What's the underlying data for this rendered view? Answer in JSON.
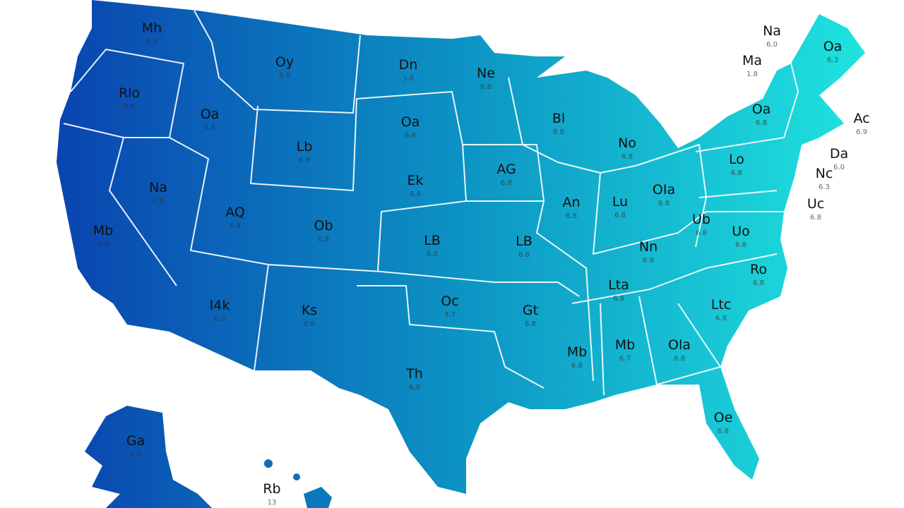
{
  "states": [
    {
      "label": "Mh",
      "value": "6.8"
    },
    {
      "label": "Oy",
      "value": "8.6"
    },
    {
      "label": "Dn",
      "value": "3.8"
    },
    {
      "label": "Ne",
      "value": "8.8"
    },
    {
      "label": "Rlo",
      "value": "6.8"
    },
    {
      "label": "Oa",
      "value": "6.8"
    },
    {
      "label": "Oa",
      "value": "6.8"
    },
    {
      "label": "Bl",
      "value": "8.8"
    },
    {
      "label": "Lb",
      "value": "6.8"
    },
    {
      "label": "No",
      "value": "6.8"
    },
    {
      "label": "Ek",
      "value": "6.8"
    },
    {
      "label": "AG",
      "value": "6.8"
    },
    {
      "label": "Na",
      "value": "6.8"
    },
    {
      "label": "Oa",
      "value": "6.8"
    },
    {
      "label": "Lo",
      "value": "6.8"
    },
    {
      "label": "An",
      "value": "6.8"
    },
    {
      "label": "Lu",
      "value": "6.8"
    },
    {
      "label": "OIa",
      "value": "6.8"
    },
    {
      "label": "AQ",
      "value": "6.8"
    },
    {
      "label": "Mb",
      "value": "6.8"
    },
    {
      "label": "Ob",
      "value": "6.8"
    },
    {
      "label": "LB",
      "value": "6.8"
    },
    {
      "label": "LB",
      "value": "6.8"
    },
    {
      "label": "Nn",
      "value": "6.8"
    },
    {
      "label": "Uo",
      "value": "6.8"
    },
    {
      "label": "Ub",
      "value": "6.8"
    },
    {
      "label": "Ro",
      "value": "6.8"
    },
    {
      "label": "Lta",
      "value": "6.8"
    },
    {
      "label": "Oc",
      "value": "3.7"
    },
    {
      "label": "Ltc",
      "value": "6.8"
    },
    {
      "label": "I4k",
      "value": "6.0"
    },
    {
      "label": "Ks",
      "value": "8.8"
    },
    {
      "label": "Gt",
      "value": "6.8"
    },
    {
      "label": "Mb",
      "value": "6.8"
    },
    {
      "label": "Mb",
      "value": "6.7"
    },
    {
      "label": "Ola",
      "value": "6.8"
    },
    {
      "label": "Th",
      "value": "6.8"
    },
    {
      "label": "Oe",
      "value": "6.8"
    },
    {
      "label": "Ga",
      "value": "6.8"
    },
    {
      "label": "Rb",
      "value": "13"
    },
    {
      "label": "Na",
      "value": "6.0"
    },
    {
      "label": "Oa",
      "value": "6.3"
    },
    {
      "label": "Ma",
      "value": "1.8"
    },
    {
      "label": "Ac",
      "value": "6.9"
    },
    {
      "label": "Da",
      "value": "6.0"
    },
    {
      "label": "Nc",
      "value": "6.3"
    },
    {
      "label": "Uc",
      "value": "6.8"
    }
  ]
}
